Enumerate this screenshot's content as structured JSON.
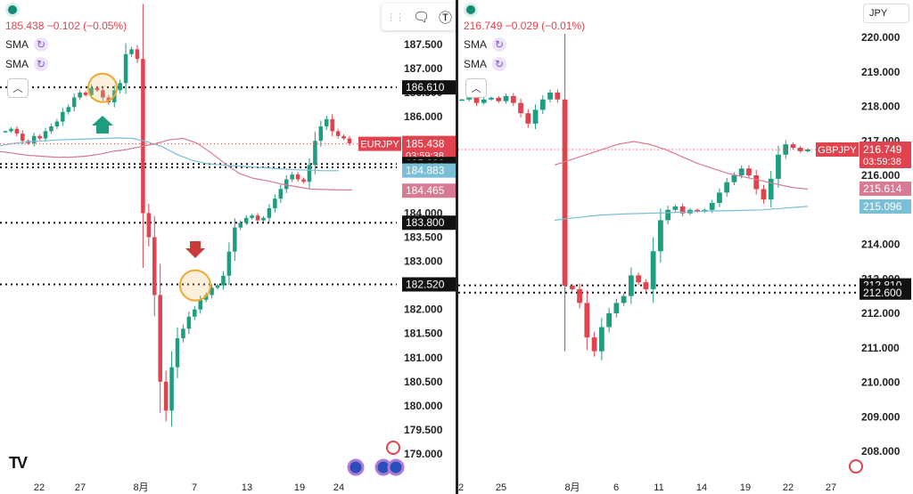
{
  "left_panel": {
    "quote": "185.438 −0.102 (−0.05%)",
    "indicators": [
      {
        "label": "SMA"
      },
      {
        "label": "SMA"
      }
    ],
    "toolbar": {
      "comment_icon": "speech-bubble-icon",
      "text_icon": "text-tool-icon"
    }
  },
  "right_panel": {
    "quote": "216.749 −0.029 (−0.01%)",
    "indicators": [
      {
        "label": "SMA"
      },
      {
        "label": "SMA"
      }
    ],
    "currency_selector": "JPY"
  },
  "colors": {
    "bull": "#1e9d80",
    "bear": "#e0434e",
    "sma_pink": "#d77a94",
    "sma_blue": "#79bfd6"
  },
  "chart_data": [
    {
      "type": "candlestick",
      "symbol": "EURJPY",
      "yaxis": {
        "min": 179.0,
        "max": 187.5,
        "ticks": [
          "187.500",
          "187.000",
          "186.500",
          "186.000",
          "185.500",
          "185.000",
          "184.500",
          "184.000",
          "183.500",
          "183.000",
          "182.500",
          "182.000",
          "181.500",
          "181.000",
          "180.500",
          "180.000",
          "179.500",
          "179.000"
        ]
      },
      "xaxis": {
        "ticks": [
          "22",
          "27",
          "8月",
          "7",
          "13",
          "19",
          "24"
        ]
      },
      "price_labels": [
        {
          "value": "185.438",
          "sub": "03:59:38",
          "symbol": "EURJPY",
          "color": "#e0434e"
        },
        {
          "value": "186.610",
          "color": "#111111"
        },
        {
          "value": "185.020",
          "color": "#111111"
        },
        {
          "value": "184.950",
          "color": "#111111"
        },
        {
          "value": "184.883",
          "color": "#79bfd6"
        },
        {
          "value": "184.465",
          "color": "#d77a94"
        },
        {
          "value": "183.800",
          "color": "#111111"
        },
        {
          "value": "182.520",
          "color": "#111111"
        }
      ],
      "horizontal_levels": [
        186.61,
        185.02,
        184.95,
        183.8,
        182.52
      ],
      "series": [
        {
          "close": [
            185.7,
            185.75,
            185.65,
            185.5,
            185.45,
            185.6,
            185.55,
            185.7,
            185.8,
            185.9,
            186.1,
            186.2,
            186.4,
            186.5,
            186.45,
            186.6,
            186.55,
            186.4,
            186.3,
            186.55,
            186.7,
            187.3,
            187.4,
            187.2,
            184.0,
            183.5,
            182.3,
            180.5,
            179.9,
            180.8,
            181.4,
            181.6,
            181.85,
            182.0,
            182.2,
            182.3,
            182.45,
            182.5,
            182.7,
            183.2,
            183.7,
            183.8,
            183.9,
            183.95,
            183.85,
            183.9,
            184.1,
            184.3,
            184.5,
            184.7,
            184.8,
            184.7,
            184.65,
            185.0,
            185.5,
            185.8,
            185.95,
            185.7,
            185.6,
            185.55,
            185.45
          ]
        },
        {
          "name": "SMA (pink)",
          "values": [
            185.28,
            185.24,
            185.2,
            185.18,
            185.16,
            185.16,
            185.18,
            185.22,
            185.28,
            185.32,
            185.38,
            185.44,
            185.52,
            185.55,
            185.45,
            185.25,
            185.02,
            184.82,
            184.72,
            184.67,
            184.6,
            184.55,
            184.5,
            184.49,
            184.48,
            184.48
          ]
        },
        {
          "name": "SMA (blue)",
          "values": [
            185.4,
            185.45,
            185.48,
            185.5,
            185.52,
            185.53,
            185.54,
            185.55,
            185.56,
            185.55,
            185.48,
            185.38,
            185.22,
            185.1,
            185.03,
            185.0,
            184.98,
            184.96,
            184.94,
            184.92,
            184.9,
            184.89,
            184.88,
            184.88
          ]
        }
      ],
      "annotations": [
        {
          "type": "circle",
          "at": "27 / 186.6"
        },
        {
          "type": "up-arrow",
          "color": "#1e9d80"
        },
        {
          "type": "down-arrow",
          "color": "#c93a3a"
        },
        {
          "type": "circle",
          "at": "7 / 182.5"
        }
      ]
    },
    {
      "type": "candlestick",
      "symbol": "GBPJPY",
      "yaxis": {
        "min": 208.0,
        "max": 220.0,
        "ticks": [
          "220.000",
          "219.000",
          "218.000",
          "217.000",
          "216.000",
          "215.000",
          "214.000",
          "213.000",
          "212.000",
          "211.000",
          "210.000",
          "209.000",
          "208.000"
        ]
      },
      "xaxis": {
        "ticks": [
          "2",
          "25",
          "8月",
          "6",
          "11",
          "14",
          "19",
          "22",
          "27"
        ]
      },
      "price_labels": [
        {
          "value": "216.749",
          "sub": "03:59:38",
          "symbol": "GBPJPY",
          "color": "#e0434e"
        },
        {
          "value": "215.614",
          "color": "#d77a94"
        },
        {
          "value": "215.096",
          "color": "#79bfd6"
        },
        {
          "value": "212.810",
          "color": "#111111"
        },
        {
          "value": "212.600",
          "color": "#111111"
        }
      ],
      "horizontal_levels": [
        212.81,
        212.6
      ],
      "series": [
        {
          "close": [
            218.2,
            218.3,
            218.1,
            218.2,
            218.25,
            218.15,
            218.3,
            218.1,
            217.8,
            217.5,
            217.9,
            218.2,
            218.4,
            218.2,
            212.8,
            212.7,
            212.3,
            211.3,
            210.9,
            211.6,
            212.0,
            212.3,
            212.5,
            213.1,
            212.9,
            212.7,
            213.8,
            214.7,
            215.0,
            215.1,
            214.9,
            215.0,
            214.95,
            215.0,
            215.2,
            215.5,
            215.8,
            216.0,
            216.2,
            216.0,
            215.6,
            215.3,
            215.9,
            216.6,
            216.9,
            216.8,
            216.7,
            216.75
          ]
        },
        {
          "name": "SMA (pink)",
          "values": [
            216.3,
            216.45,
            216.6,
            216.75,
            216.9,
            216.98,
            216.9,
            216.75,
            216.55,
            216.35,
            216.2,
            216.05,
            215.95,
            215.85,
            215.75,
            215.65,
            215.6
          ]
        },
        {
          "name": "SMA (blue)",
          "values": [
            214.7,
            214.78,
            214.85,
            214.88,
            214.9,
            214.92,
            214.95,
            214.97,
            214.98,
            215.0,
            215.05,
            215.1
          ]
        }
      ]
    }
  ]
}
